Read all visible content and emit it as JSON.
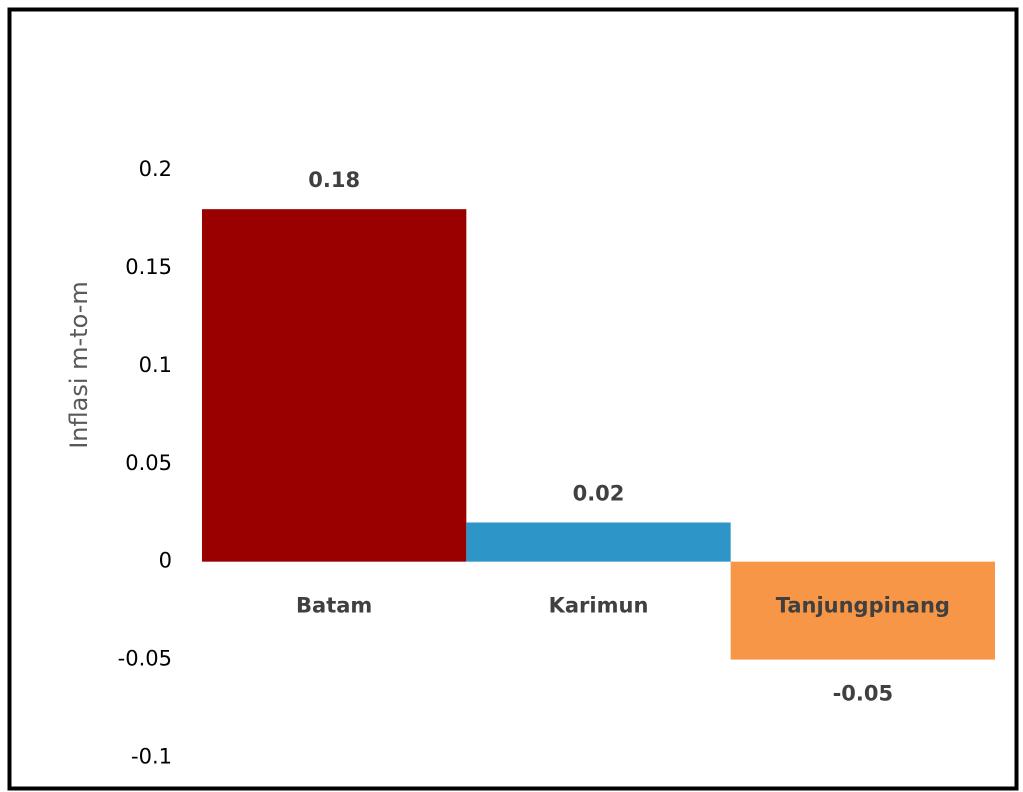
{
  "chart_data": {
    "type": "bar",
    "ylabel": "Inflasi m-to-m",
    "categories": [
      "Batam",
      "Karimun",
      "Tanjungpinang"
    ],
    "values": [
      0.18,
      0.02,
      -0.05
    ],
    "colors": [
      "#990000",
      "#2e95c8",
      "#f79646"
    ],
    "ylim": [
      -0.1,
      0.2
    ],
    "yticks": [
      0.2,
      0.15,
      0.1,
      0.05,
      0,
      -0.05,
      -0.1
    ],
    "grid": false
  }
}
